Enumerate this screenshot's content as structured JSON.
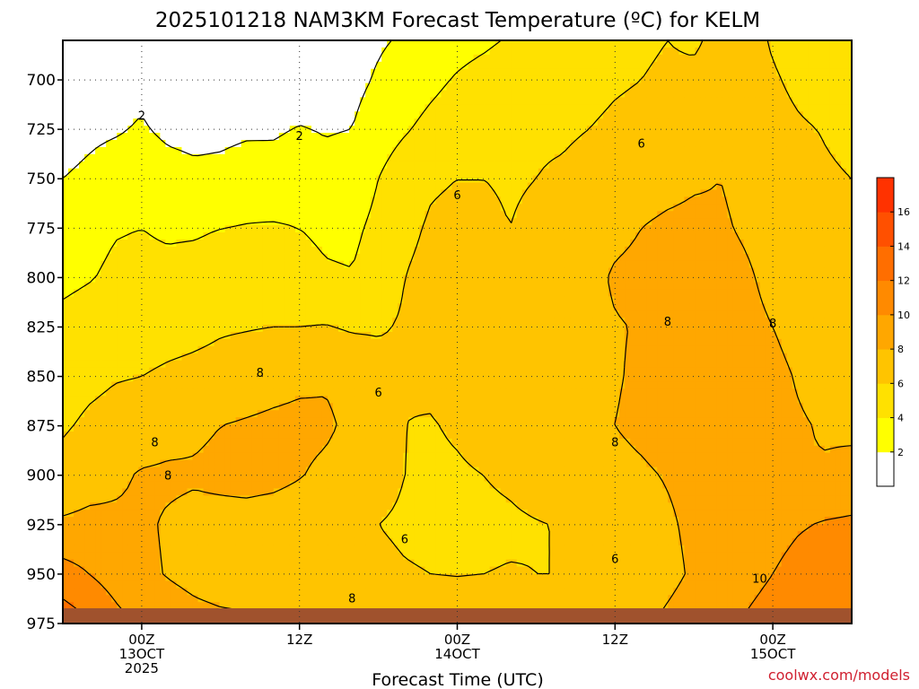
{
  "chart_data": {
    "type": "heatmap",
    "title": "2025101218 NAM3KM Forecast Temperature (ºC) for KELM",
    "xlabel": "Forecast Time (UTC)",
    "ylabel": "",
    "ylim": [
      975,
      680
    ],
    "xlim": [
      -6,
      54
    ],
    "y_ticks": [
      700,
      725,
      750,
      775,
      800,
      825,
      850,
      875,
      900,
      925,
      950,
      975
    ],
    "x_ticks": [
      {
        "hour": 0,
        "lines": [
          "00Z",
          "13OCT",
          "2025"
        ]
      },
      {
        "hour": 12,
        "lines": [
          "12Z"
        ]
      },
      {
        "hour": 24,
        "lines": [
          "00Z",
          "14OCT"
        ]
      },
      {
        "hour": 36,
        "lines": [
          "12Z"
        ]
      },
      {
        "hour": 48,
        "lines": [
          "00Z",
          "15OCT"
        ]
      }
    ],
    "grid": true,
    "legend": "right",
    "colorbar": {
      "levels": [
        2,
        4,
        6,
        8,
        10,
        12,
        14,
        16
      ],
      "colors": [
        "#ffffff",
        "#ffff00",
        "#ffe100",
        "#ffc400",
        "#ffa700",
        "#ff8a00",
        "#ff6e00",
        "#ff5000",
        "#ff3200"
      ]
    },
    "ground_color": "#a0522d",
    "contour_color": "#000000",
    "freezing_line_color": "#c00060",
    "x_hours": [
      -6,
      -4,
      -2,
      0,
      2,
      4,
      6,
      8,
      10,
      12,
      14,
      16,
      18,
      20,
      22,
      24,
      26,
      28,
      30,
      32,
      34,
      36,
      38,
      40,
      42,
      44,
      46,
      48,
      50,
      52,
      54
    ],
    "levels_hpa": [
      680,
      700,
      725,
      750,
      775,
      800,
      825,
      850,
      875,
      900,
      925,
      950,
      975
    ],
    "temperature_c": [
      [
        0.5,
        0.3,
        0.6,
        1.2,
        0.8,
        0.4,
        0.5,
        1.0,
        0.7,
        0.6,
        1.0,
        1.4,
        1.8,
        2.2,
        2.5,
        3.2,
        3.6,
        4.2,
        4.8,
        5.0,
        5.3,
        5.6,
        5.8,
        6.0,
        5.8,
        6.4,
        6.8,
        5.8,
        5.2,
        4.8,
        4.5
      ],
      [
        0.6,
        0.8,
        1.2,
        1.5,
        0.8,
        0.6,
        0.5,
        0.7,
        0.8,
        0.9,
        1.1,
        1.5,
        2.2,
        2.8,
        3.5,
        4.2,
        4.8,
        5.3,
        5.6,
        5.4,
        5.5,
        5.8,
        6.0,
        6.2,
        6.3,
        6.5,
        6.8,
        6.2,
        5.6,
        5.2,
        5.0
      ],
      [
        1.2,
        1.6,
        1.8,
        2.2,
        1.6,
        1.4,
        1.5,
        1.7,
        1.8,
        2.1,
        1.9,
        2.0,
        3.0,
        3.8,
        4.6,
        5.2,
        5.6,
        5.8,
        5.8,
        5.8,
        6.0,
        6.3,
        6.5,
        6.8,
        6.9,
        7.0,
        7.1,
        6.6,
        6.2,
        5.9,
        5.6
      ],
      [
        2.0,
        2.4,
        3.0,
        3.2,
        2.8,
        2.5,
        2.6,
        3.0,
        2.7,
        2.8,
        2.5,
        2.8,
        4.0,
        5.2,
        5.8,
        6.0,
        6.0,
        5.9,
        6.0,
        6.2,
        6.5,
        6.8,
        7.3,
        7.5,
        7.8,
        8.0,
        7.6,
        7.0,
        6.6,
        6.2,
        6.0
      ],
      [
        3.2,
        3.5,
        3.9,
        4.0,
        3.8,
        3.8,
        4.0,
        4.1,
        4.2,
        4.0,
        3.7,
        3.6,
        4.5,
        5.6,
        6.2,
        6.4,
        6.2,
        6.0,
        6.2,
        6.5,
        7.0,
        7.6,
        8.0,
        8.3,
        8.4,
        8.2,
        7.8,
        7.3,
        6.8,
        6.5,
        6.2
      ],
      [
        3.6,
        3.9,
        4.3,
        4.4,
        4.4,
        4.6,
        4.8,
        4.9,
        4.8,
        4.6,
        4.2,
        4.1,
        4.9,
        6.0,
        6.5,
        6.8,
        6.6,
        6.4,
        6.6,
        7.0,
        7.5,
        8.2,
        8.4,
        8.5,
        8.6,
        8.6,
        8.2,
        7.6,
        7.1,
        6.8,
        6.6
      ],
      [
        4.5,
        4.8,
        5.0,
        5.1,
        5.3,
        5.5,
        5.8,
        5.9,
        6.0,
        6.0,
        6.1,
        5.8,
        5.8,
        6.2,
        6.6,
        7.1,
        7.0,
        6.8,
        6.8,
        7.2,
        7.5,
        7.9,
        8.1,
        8.3,
        8.4,
        8.5,
        8.4,
        8.0,
        7.6,
        7.2,
        7.0
      ],
      [
        5.2,
        5.6,
        5.9,
        6.0,
        6.3,
        6.5,
        6.7,
        7.0,
        7.3,
        7.6,
        7.8,
        7.4,
        6.8,
        6.1,
        6.3,
        6.9,
        7.3,
        7.2,
        6.9,
        7.2,
        7.6,
        7.9,
        8.2,
        8.4,
        8.5,
        8.6,
        8.6,
        8.3,
        7.9,
        7.6,
        7.4
      ],
      [
        5.8,
        6.3,
        6.6,
        6.8,
        7.3,
        7.7,
        8.0,
        8.2,
        8.4,
        8.5,
        8.3,
        7.6,
        6.8,
        6.0,
        5.9,
        6.2,
        6.6,
        6.8,
        7.0,
        7.5,
        7.9,
        8.0,
        8.3,
        8.6,
        8.8,
        8.8,
        8.6,
        8.3,
        8.1,
        7.9,
        7.8
      ],
      [
        6.6,
        7.2,
        7.6,
        8.2,
        8.3,
        8.2,
        8.4,
        8.6,
        8.5,
        8.1,
        7.6,
        7.0,
        6.5,
        6.0,
        5.7,
        5.8,
        6.0,
        6.3,
        6.8,
        7.2,
        7.5,
        7.6,
        7.8,
        8.1,
        8.4,
        8.5,
        8.3,
        8.1,
        8.0,
        8.1,
        8.3
      ],
      [
        8.3,
        8.5,
        8.4,
        8.3,
        7.8,
        7.5,
        7.4,
        7.3,
        7.1,
        6.9,
        6.6,
        6.3,
        6.0,
        5.8,
        5.7,
        5.6,
        5.6,
        5.7,
        5.9,
        6.1,
        6.4,
        6.8,
        7.3,
        7.8,
        8.3,
        8.6,
        8.9,
        9.2,
        9.8,
        10.2,
        10.4
      ],
      [
        10.8,
        10.0,
        9.1,
        8.4,
        7.9,
        7.5,
        7.2,
        7.1,
        7.0,
        6.8,
        6.6,
        6.4,
        6.3,
        6.1,
        6.0,
        5.9,
        6.0,
        6.1,
        6.0,
        6.0,
        6.1,
        6.4,
        6.9,
        7.6,
        8.2,
        8.8,
        9.4,
        10.0,
        10.8,
        11.2,
        11.0
      ],
      [
        13.2,
        12.2,
        10.7,
        9.6,
        9.0,
        8.6,
        8.4,
        8.3,
        8.2,
        8.1,
        8.0,
        7.9,
        7.8,
        7.6,
        7.7,
        7.8,
        7.9,
        8.0,
        7.8,
        7.7,
        7.6,
        7.5,
        7.8,
        8.3,
        8.8,
        9.5,
        10.2,
        10.8,
        11.6,
        12.2,
        12.0
      ]
    ]
  },
  "credit": "coolwx.com/models",
  "credit_color": "#d02030"
}
